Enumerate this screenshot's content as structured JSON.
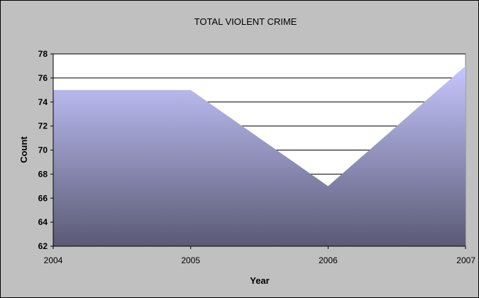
{
  "chart_data": {
    "type": "area",
    "title": "TOTAL VIOLENT CRIME",
    "xlabel": "Year",
    "ylabel": "Count",
    "categories": [
      "2004",
      "2005",
      "2006",
      "2007"
    ],
    "series": [
      {
        "values": [
          75,
          75,
          67,
          77
        ]
      }
    ],
    "ylim": [
      62,
      78
    ],
    "yticks": [
      "62",
      "64",
      "66",
      "68",
      "70",
      "72",
      "74",
      "76",
      "78"
    ],
    "grid": true,
    "legend": "none",
    "colors": {
      "chart_background": "#c0c0c0",
      "plot_background": "#ffffff",
      "area_top": "#c6c6ff",
      "area_bottom": "#5a5a75",
      "gridline": "#000000"
    }
  }
}
